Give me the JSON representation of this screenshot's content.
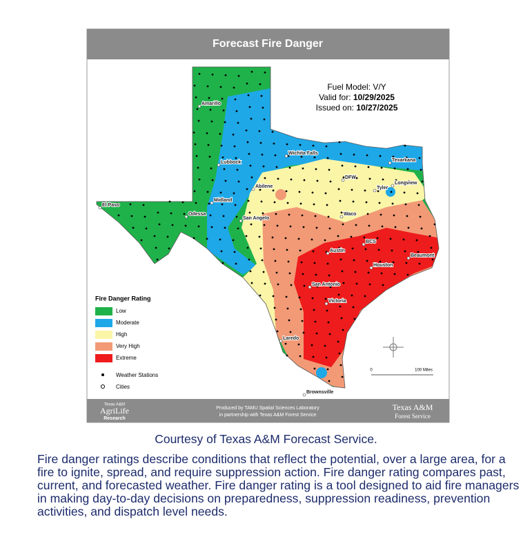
{
  "map": {
    "title": "Forecast Fire Danger",
    "fuel_model": "Fuel Model: V/Y",
    "valid_for": {
      "label": "Valid for:",
      "date": "10/29/2025"
    },
    "issued_on": {
      "label": "Issued on:",
      "date": "10/27/2025"
    },
    "legend": {
      "title": "Fire Danger Rating",
      "items": [
        {
          "label": "Low",
          "color": "#1fb24a"
        },
        {
          "label": "Moderate",
          "color": "#1ea8e8"
        },
        {
          "label": "High",
          "color": "#fbf5a8"
        },
        {
          "label": "Very High",
          "color": "#f29a76"
        },
        {
          "label": "Extreme",
          "color": "#ee1c1c"
        }
      ],
      "symbols": [
        "Weather Stations",
        "Cities"
      ]
    },
    "cities": [
      "Amarillo",
      "Lubbock",
      "Wichita Falls",
      "Texarkana",
      "Abilene",
      "DFW",
      "Tyler",
      "Longview",
      "El Paso",
      "Midland",
      "Odessa",
      "San Angelo",
      "Waco",
      "BCS",
      "Austin",
      "Beaumont",
      "Houston",
      "San Antonio",
      "Victoria",
      "Laredo",
      "Brownsville"
    ],
    "scale": {
      "start": "0",
      "end": "100 Miles"
    },
    "footer": {
      "logo_left": [
        "Texas A&M",
        "AgriLife",
        "Research"
      ],
      "credit": [
        "Produced by TAMU Spatial Sciences Laboratory",
        "in partnership with Texas A&M Forest Service"
      ],
      "logo_right": [
        "Texas A&M",
        "Forest Service"
      ]
    }
  },
  "caption": "Courtesy of Texas A&M Forecast Service.",
  "description": "Fire danger ratings describe conditions that reflect the potential, over a large area, for a fire to ignite, spread, and require suppression action. Fire danger rating compares past, current, and forecasted weather. Fire danger rating is a tool designed to aid fire managers in making day-to-day decisions on preparedness, suppression readiness, prevention activities, and dispatch level needs."
}
